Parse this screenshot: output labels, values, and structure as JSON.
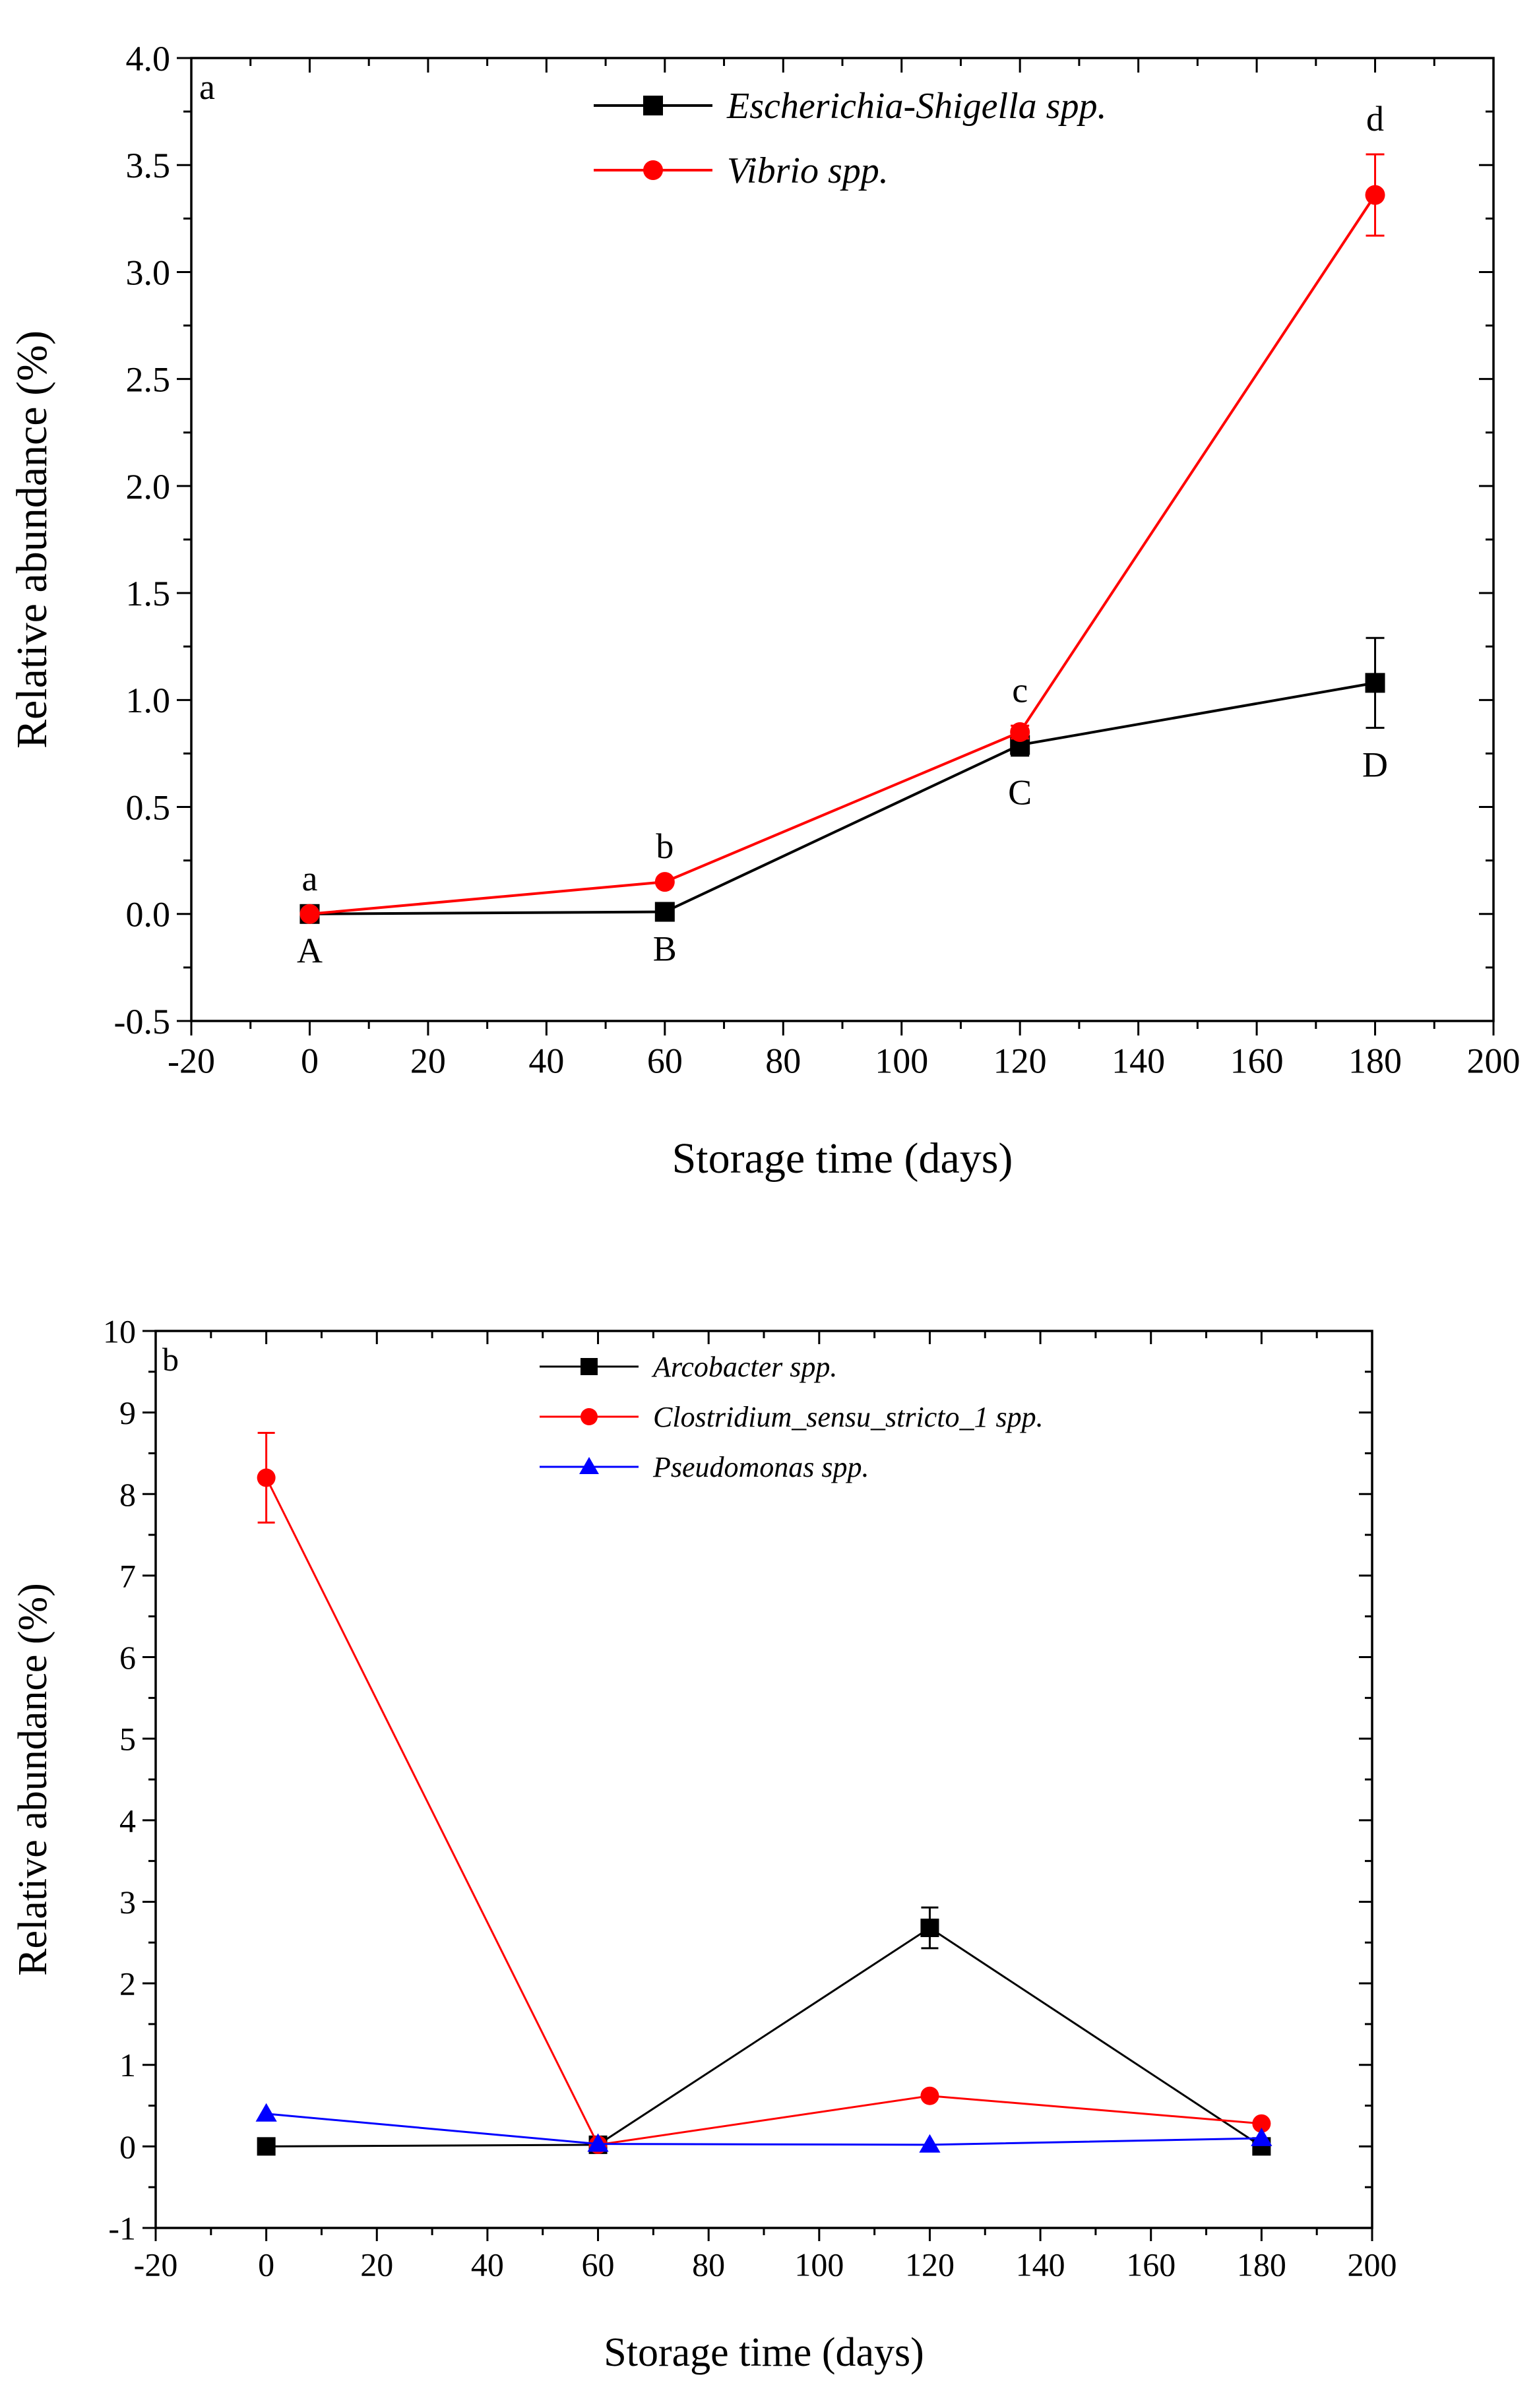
{
  "chart_data": [
    {
      "panel": "a",
      "type": "line",
      "xlabel": "Storage time (days)",
      "ylabel": "Relative abundance (%)",
      "xlim": [
        -20,
        200
      ],
      "ylim": [
        -0.5,
        4.0
      ],
      "xticks": [
        -20,
        0,
        20,
        40,
        60,
        80,
        100,
        120,
        140,
        160,
        180,
        200
      ],
      "yticks": [
        -0.5,
        0.0,
        0.5,
        1.0,
        1.5,
        2.0,
        2.5,
        3.0,
        3.5,
        4.0
      ],
      "ytick_decimals": 1,
      "legend_position": "top-right",
      "series": [
        {
          "name": "Escherichia-Shigella spp.",
          "color": "#000000",
          "marker": "square",
          "x": [
            0,
            60,
            120,
            180
          ],
          "values": [
            0.0,
            0.01,
            0.79,
            1.08
          ],
          "errors": [
            0.0,
            0.0,
            0.05,
            0.21
          ],
          "letters": [
            "A",
            "B",
            "C",
            "D"
          ],
          "letter_placement": "below"
        },
        {
          "name": "Vibrio spp.",
          "color": "#ff0000",
          "marker": "circle",
          "x": [
            0,
            60,
            120,
            180
          ],
          "values": [
            0.0,
            0.15,
            0.85,
            3.36
          ],
          "errors": [
            0.0,
            0.0,
            0.03,
            0.19
          ],
          "letters": [
            "a",
            "b",
            "c",
            "d"
          ],
          "letter_placement": "above"
        }
      ]
    },
    {
      "panel": "b",
      "type": "line",
      "xlabel": "Storage time (days)",
      "ylabel": "Relative abundance (%)",
      "xlim": [
        -20,
        200
      ],
      "ylim": [
        -1,
        10
      ],
      "xticks": [
        -20,
        0,
        20,
        40,
        60,
        80,
        100,
        120,
        140,
        160,
        180,
        200
      ],
      "yticks": [
        -1,
        0,
        1,
        2,
        3,
        4,
        5,
        6,
        7,
        8,
        9,
        10
      ],
      "ytick_decimals": 0,
      "legend_position": "top-right",
      "series": [
        {
          "name": "Arcobacter spp.",
          "color": "#000000",
          "marker": "square",
          "x": [
            0,
            60,
            120,
            180
          ],
          "values": [
            0.0,
            0.02,
            2.68,
            0.0
          ],
          "errors": [
            0.0,
            0.0,
            0.25,
            0.0
          ]
        },
        {
          "name": "Clostridium_sensu_stricto_1 spp.",
          "color": "#ff0000",
          "marker": "circle",
          "x": [
            0,
            60,
            120,
            180
          ],
          "values": [
            8.2,
            0.02,
            0.62,
            0.28
          ],
          "errors": [
            0.55,
            0.0,
            0.0,
            0.0
          ]
        },
        {
          "name": "Pseudomonas spp.",
          "color": "#0000ff",
          "marker": "triangle",
          "x": [
            0,
            60,
            120,
            180
          ],
          "values": [
            0.4,
            0.03,
            0.02,
            0.1
          ],
          "errors": [
            0.0,
            0.0,
            0.0,
            0.0
          ]
        }
      ]
    }
  ]
}
